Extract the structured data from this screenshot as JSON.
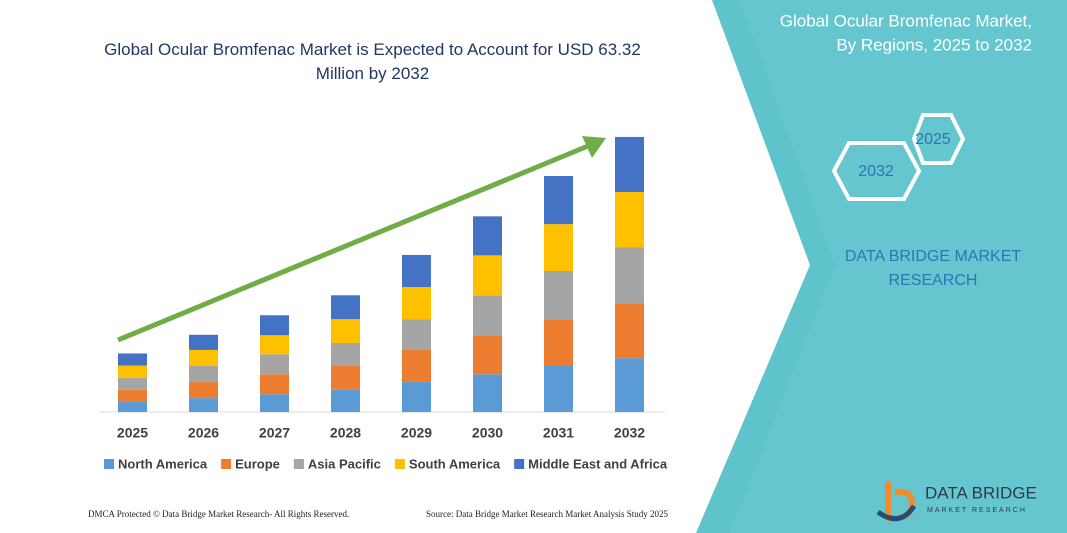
{
  "chart_data": {
    "type": "stacked-bar",
    "title": "Global Ocular Bromfenac Market is Expected to Account for USD 63.32 Million by 2032",
    "categories": [
      "2025",
      "2026",
      "2027",
      "2028",
      "2029",
      "2030",
      "2031",
      "2032"
    ],
    "series": [
      {
        "name": "North America",
        "color": "#5b9bd5",
        "values": [
          2.3,
          3.2,
          4.1,
          5.1,
          6.9,
          8.7,
          10.6,
          12.4
        ]
      },
      {
        "name": "Europe",
        "color": "#ed7d31",
        "values": [
          2.8,
          3.7,
          4.6,
          5.5,
          7.4,
          9.0,
          10.8,
          12.7
        ]
      },
      {
        "name": "Asia Pacific",
        "color": "#a5a5a5",
        "values": [
          2.8,
          3.7,
          4.6,
          5.3,
          7.1,
          9.2,
          11.1,
          12.9
        ]
      },
      {
        "name": "South America",
        "color": "#ffc000",
        "values": [
          2.8,
          3.7,
          4.4,
          5.5,
          7.4,
          9.2,
          10.8,
          12.7
        ]
      },
      {
        "name": "Middle East and Africa",
        "color": "#4472c4",
        "values": [
          2.8,
          3.5,
          4.6,
          5.5,
          7.4,
          9.0,
          11.1,
          12.7
        ]
      }
    ],
    "ylim": [
      0,
      65
    ],
    "legend": "bottom"
  },
  "panel": {
    "title_lines": [
      "Global Ocular Bromfenac Market,",
      "By Regions, 2025 to 2032"
    ],
    "hex_right": "2025",
    "hex_left": "2032",
    "brand_lines": [
      "DATA BRIDGE MARKET",
      "RESEARCH"
    ]
  },
  "footer": {
    "left": "DMCA Protected © Data Bridge Market Research-  All Rights Reserved.",
    "right": "Source: Data Bridge Market Research  Market Analysis Study 2025"
  },
  "logo": {
    "name": "DATA BRIDGE",
    "tagline": "MARKET RESEARCH"
  }
}
